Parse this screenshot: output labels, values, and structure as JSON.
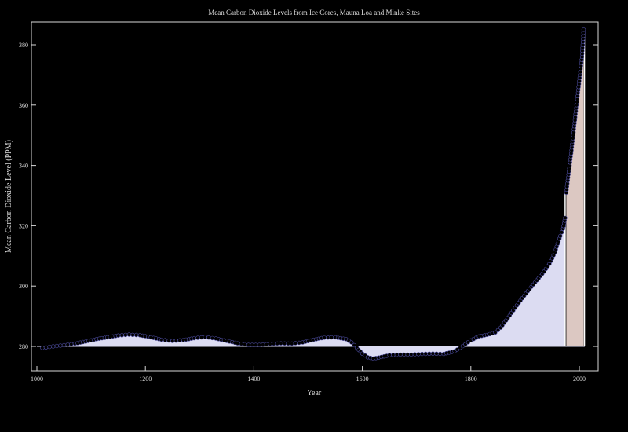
{
  "chart_data": {
    "type": "line",
    "title": "Mean Carbon Dioxide Levels from Ice Cores, Mauna Loa and Minke Sites",
    "xlabel": "Year",
    "ylabel": "Mean Carbon Dioxide Level (PPM)",
    "xlim": [
      1000,
      2010
    ],
    "ylim": [
      275,
      387
    ],
    "baseline": 280,
    "grid": false,
    "x_ticks": [
      1000,
      1200,
      1400,
      1600,
      1800,
      2000
    ],
    "y_ticks": [
      280,
      300,
      320,
      340,
      360,
      380
    ],
    "colors": {
      "background": "#000000",
      "frame": "#d8d8d8",
      "text": "#dddddd",
      "series": "#000000",
      "ice_fill": "#dcdcf2",
      "instrument_fill": "#dcc8c2",
      "point_edge": "#4a4a9a"
    },
    "series": [
      {
        "values_xy": [
          [
            1010,
            279.5
          ],
          [
            1030,
            280.0
          ],
          [
            1050,
            280.4
          ],
          [
            1070,
            280.9
          ],
          [
            1090,
            281.6
          ],
          [
            1110,
            282.4
          ],
          [
            1130,
            283.0
          ],
          [
            1150,
            283.6
          ],
          [
            1170,
            283.9
          ],
          [
            1190,
            283.7
          ],
          [
            1210,
            283.0
          ],
          [
            1230,
            282.2
          ],
          [
            1250,
            281.8
          ],
          [
            1270,
            282.1
          ],
          [
            1290,
            282.7
          ],
          [
            1310,
            283.1
          ],
          [
            1330,
            282.6
          ],
          [
            1350,
            281.8
          ],
          [
            1370,
            281.0
          ],
          [
            1390,
            280.5
          ],
          [
            1410,
            280.5
          ],
          [
            1430,
            280.8
          ],
          [
            1450,
            281.0
          ],
          [
            1470,
            280.9
          ],
          [
            1490,
            281.3
          ],
          [
            1510,
            282.2
          ],
          [
            1530,
            282.9
          ],
          [
            1550,
            283.0
          ],
          [
            1570,
            282.4
          ],
          [
            1580,
            281.3
          ],
          [
            1590,
            279.5
          ],
          [
            1600,
            277.6
          ],
          [
            1610,
            276.4
          ],
          [
            1620,
            276.0
          ],
          [
            1630,
            276.3
          ],
          [
            1650,
            277.1
          ],
          [
            1670,
            277.3
          ],
          [
            1690,
            277.3
          ],
          [
            1710,
            277.5
          ],
          [
            1730,
            277.6
          ],
          [
            1750,
            277.5
          ],
          [
            1770,
            278.4
          ],
          [
            1785,
            280.1
          ],
          [
            1800,
            282.0
          ],
          [
            1815,
            283.3
          ],
          [
            1830,
            283.8
          ],
          [
            1845,
            284.6
          ],
          [
            1855,
            286.2
          ],
          [
            1865,
            288.6
          ],
          [
            1875,
            291.1
          ],
          [
            1885,
            293.6
          ],
          [
            1895,
            296.0
          ],
          [
            1905,
            298.3
          ],
          [
            1915,
            300.5
          ],
          [
            1925,
            302.6
          ],
          [
            1935,
            304.8
          ],
          [
            1945,
            307.4
          ],
          [
            1950,
            309.2
          ],
          [
            1955,
            311.2
          ],
          [
            1960,
            314.0
          ],
          [
            1965,
            316.6
          ],
          [
            1970,
            319.0
          ],
          [
            1974,
            322.6
          ]
        ]
      },
      {
        "values_xy": [
          [
            1976,
            331.0
          ],
          [
            1980,
            337.0
          ],
          [
            1985,
            344.0
          ],
          [
            1990,
            352.0
          ],
          [
            1995,
            360.0
          ],
          [
            2000,
            368.0
          ],
          [
            2005,
            376.0
          ],
          [
            2008,
            385.0
          ]
        ]
      }
    ]
  }
}
